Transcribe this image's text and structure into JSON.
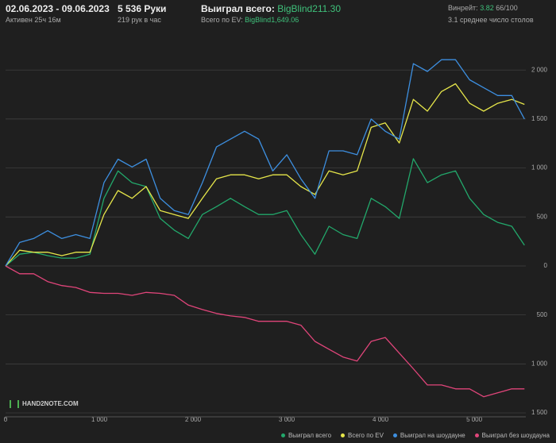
{
  "header": {
    "dates": "02.06.2023 - 09.06.2023",
    "active": "Активен 25ч 16м",
    "hands": "5 536 Руки",
    "hands_per_hour": "219 рук в час",
    "won_label": "Выиграл всего:",
    "won_value": "BigBlind211.30",
    "ev_label": "Всего по EV:",
    "ev_value": "BigBlind1,649.06",
    "winrate_label": "Винрейт:",
    "winrate_value": "3.82",
    "winrate_score": "66/100",
    "tables": "3.1 среднее число столов"
  },
  "logo": "HAND2NOTE.COM",
  "chart_data": {
    "type": "line",
    "grid": true,
    "legend": "bottom-right",
    "xlim": [
      0,
      5550
    ],
    "ylim": [
      -1540,
      2350
    ],
    "xticks": [
      0,
      {
        "value": 1000,
        "label": "1 000"
      },
      {
        "value": 2000,
        "label": "2 000"
      },
      {
        "value": 3000,
        "label": "3 000"
      },
      {
        "value": 4000,
        "label": "4 000"
      },
      {
        "value": 5000,
        "label": "5 000"
      }
    ],
    "yticks": [
      {
        "value": -1500,
        "label": "1 500"
      },
      {
        "value": -1000,
        "label": "1 000"
      },
      {
        "value": -500,
        "label": "500"
      },
      0,
      500,
      {
        "value": 1000,
        "label": "1 000"
      },
      {
        "value": 1500,
        "label": "1 500"
      },
      {
        "value": 2000,
        "label": "2 000"
      }
    ],
    "x": [
      0,
      150,
      300,
      450,
      600,
      750,
      900,
      1050,
      1200,
      1350,
      1500,
      1650,
      1800,
      1950,
      2100,
      2250,
      2400,
      2550,
      2700,
      2850,
      3000,
      3150,
      3300,
      3450,
      3600,
      3750,
      3900,
      4050,
      4200,
      4350,
      4500,
      4650,
      4800,
      4950,
      5100,
      5250,
      5400,
      5536
    ],
    "series": [
      {
        "name": "Выиграл всего",
        "color": "#22a86b",
        "values": [
          0,
          120,
          140,
          105,
          80,
          80,
          120,
          690,
          970,
          850,
          810,
          485,
          365,
          280,
          525,
          605,
          690,
          605,
          525,
          525,
          565,
          320,
          120,
          405,
          320,
          280,
          690,
          605,
          485,
          1095,
          850,
          930,
          970,
          690,
          525,
          445,
          405,
          211
        ]
      },
      {
        "name": "Всего по EV",
        "color": "#e6e64a",
        "values": [
          0,
          160,
          140,
          140,
          105,
          140,
          140,
          525,
          770,
          690,
          810,
          565,
          525,
          485,
          690,
          890,
          930,
          930,
          890,
          930,
          930,
          810,
          730,
          970,
          930,
          970,
          1415,
          1460,
          1255,
          1700,
          1580,
          1780,
          1860,
          1660,
          1580,
          1660,
          1700,
          1649
        ]
      },
      {
        "name": "Выиграл на шоудауне",
        "color": "#3d8fe0",
        "values": [
          0,
          240,
          280,
          360,
          280,
          320,
          280,
          850,
          1090,
          1010,
          1090,
          690,
          565,
          525,
          850,
          1215,
          1295,
          1375,
          1295,
          970,
          1135,
          890,
          690,
          1175,
          1175,
          1135,
          1500,
          1375,
          1295,
          2065,
          1985,
          2105,
          2105,
          1900,
          1820,
          1740,
          1740,
          1500
        ]
      },
      {
        "name": "Выиграл без шоудауна",
        "color": "#e0457a",
        "values": [
          0,
          -80,
          -80,
          -160,
          -200,
          -220,
          -270,
          -280,
          -280,
          -300,
          -270,
          -280,
          -300,
          -400,
          -445,
          -485,
          -510,
          -525,
          -565,
          -565,
          -565,
          -605,
          -770,
          -850,
          -930,
          -970,
          -770,
          -730,
          -890,
          -1050,
          -1215,
          -1215,
          -1255,
          -1255,
          -1335,
          -1295,
          -1255,
          -1255
        ]
      }
    ]
  }
}
